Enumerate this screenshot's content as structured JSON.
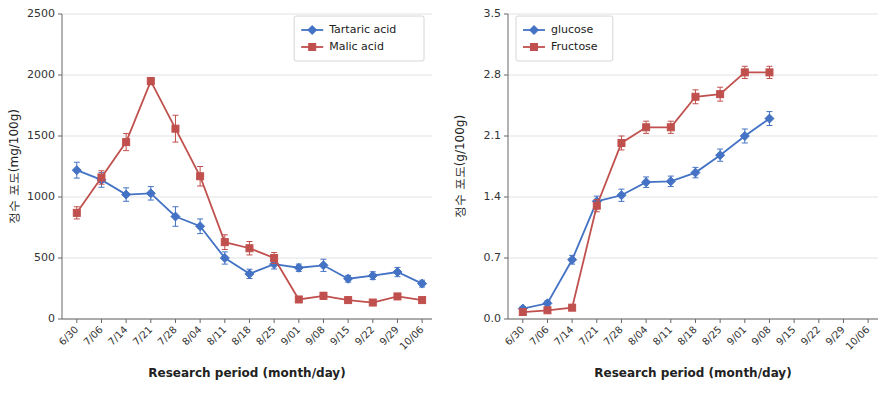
{
  "chart_data": [
    {
      "type": "line",
      "categories": [
        "6/30",
        "7/06",
        "7/14",
        "7/21",
        "7/28",
        "8/04",
        "8/11",
        "8/18",
        "8/25",
        "9/01",
        "9/08",
        "9/15",
        "9/22",
        "9/29",
        "10/06"
      ],
      "series": [
        {
          "name": "Tartaric acid",
          "color": "#4472C4",
          "marker": "diamond",
          "values": [
            1220,
            1140,
            1020,
            1030,
            840,
            760,
            500,
            370,
            450,
            420,
            440,
            330,
            355,
            385,
            290
          ],
          "errors": [
            65,
            60,
            55,
            55,
            80,
            60,
            50,
            38,
            40,
            30,
            50,
            28,
            32,
            38,
            28
          ]
        },
        {
          "name": "Malic acid",
          "color": "#C0504D",
          "marker": "square",
          "values": [
            870,
            1160,
            1450,
            1950,
            1560,
            1170,
            630,
            580,
            500,
            160,
            190,
            155,
            135,
            185,
            155
          ],
          "errors": [
            50,
            55,
            70,
            30,
            110,
            80,
            60,
            55,
            45,
            18,
            28,
            18,
            18,
            22,
            18
          ]
        }
      ],
      "xlabel": "Research period  (month/day)",
      "ylabel": "정수 포도(mg/100g)",
      "ylim": [
        0,
        2500
      ],
      "yticks": [
        0,
        500,
        1000,
        1500,
        2000,
        2500
      ],
      "grid": true,
      "legend": "upper right"
    },
    {
      "type": "line",
      "categories": [
        "6/30",
        "7/06",
        "7/14",
        "7/21",
        "7/28",
        "8/04",
        "8/11",
        "8/18",
        "8/25",
        "9/01",
        "9/08",
        "9/15",
        "9/22",
        "9/29",
        "10/06"
      ],
      "series": [
        {
          "name": "glucose",
          "color": "#4472C4",
          "marker": "diamond",
          "values": [
            0.12,
            0.18,
            0.68,
            1.35,
            1.42,
            1.57,
            1.58,
            1.68,
            1.88,
            2.1,
            2.3,
            null,
            null,
            null,
            null
          ],
          "errors": [
            0.02,
            0.03,
            0.05,
            0.06,
            0.07,
            0.06,
            0.06,
            0.06,
            0.07,
            0.08,
            0.08,
            null,
            null,
            null,
            null
          ]
        },
        {
          "name": "Fructose",
          "color": "#C0504D",
          "marker": "square",
          "values": [
            0.08,
            0.1,
            0.13,
            1.3,
            2.02,
            2.2,
            2.2,
            2.55,
            2.58,
            2.83,
            2.83,
            null,
            null,
            null,
            null
          ],
          "errors": [
            0.02,
            0.02,
            0.03,
            0.07,
            0.08,
            0.07,
            0.07,
            0.08,
            0.08,
            0.07,
            0.07,
            null,
            null,
            null,
            null
          ]
        }
      ],
      "xlabel": "Research period  (month/day)",
      "ylabel": "정수 포도(g/100g)",
      "ylim": [
        0,
        3.5
      ],
      "yticks": [
        {
          "value": 0,
          "label": "0.0"
        },
        0.7,
        1.4,
        2.1,
        2.8,
        3.5
      ],
      "grid": true,
      "legend": "upper left"
    }
  ]
}
